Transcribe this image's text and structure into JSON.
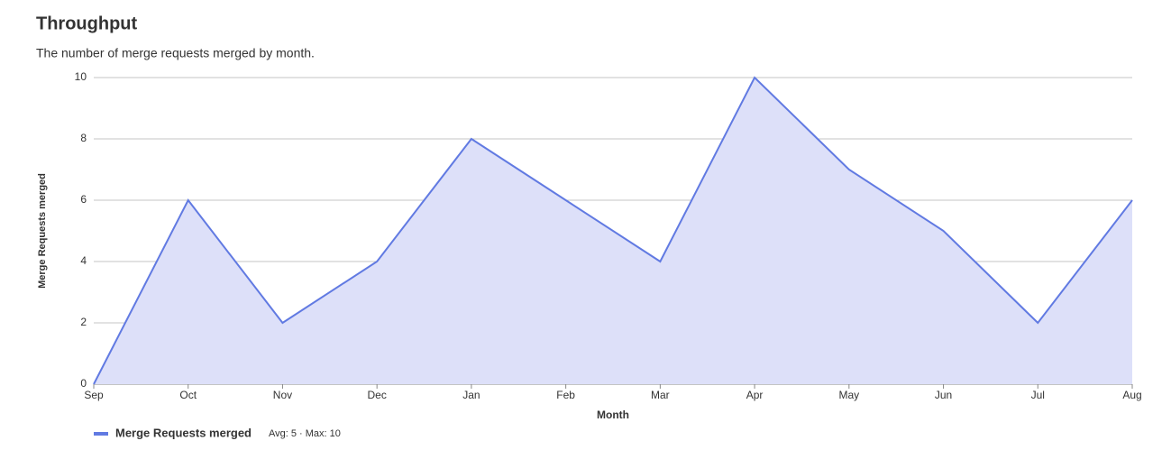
{
  "chart_data": {
    "type": "area",
    "title": "Throughput",
    "subtitle": "The number of merge requests merged by month.",
    "x_label": "Month",
    "y_label": "Merge Requests merged",
    "categories": [
      "Sep",
      "Oct",
      "Nov",
      "Dec",
      "Jan",
      "Feb",
      "Mar",
      "Apr",
      "May",
      "Jun",
      "Jul",
      "Aug"
    ],
    "series": [
      {
        "name": "Merge Requests merged",
        "color": "#617ae2",
        "fill": "#dde0f9",
        "values": [
          0,
          6,
          2,
          4,
          8,
          6,
          4,
          10,
          7,
          5,
          2,
          6
        ]
      }
    ],
    "legend_stats": "Avg: 5 · Max: 10",
    "ylim": [
      0,
      10
    ],
    "yticks": [
      0,
      2,
      4,
      6,
      8,
      10
    ],
    "grid": true
  }
}
